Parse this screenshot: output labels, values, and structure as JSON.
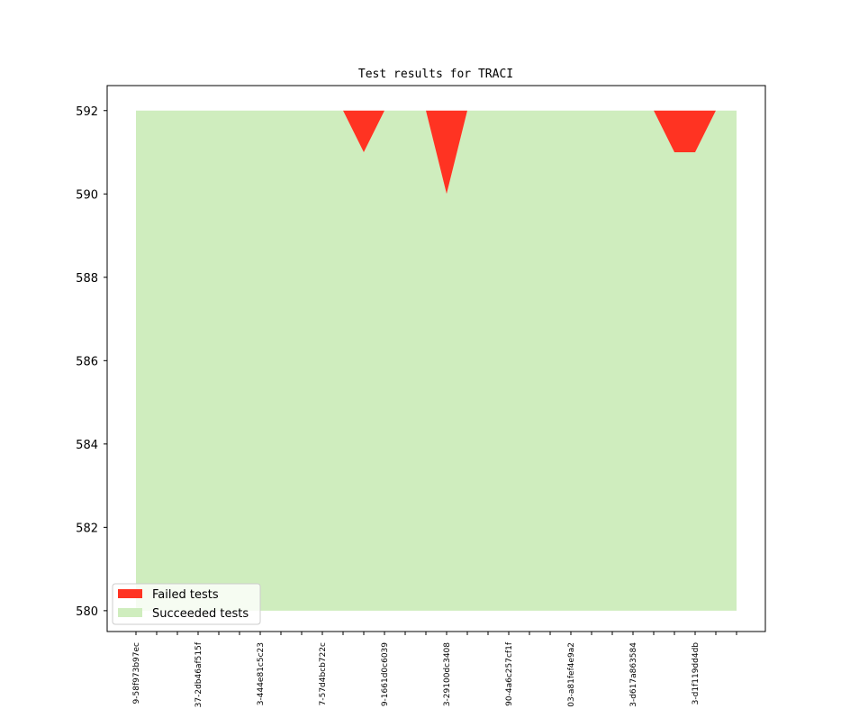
{
  "chart_data": {
    "type": "area",
    "title": "Test results for TRACI",
    "xlabel": "",
    "ylabel": "",
    "ylim": [
      579.5,
      592.6
    ],
    "y_ticks": [
      580,
      582,
      584,
      586,
      588,
      590,
      592
    ],
    "x_tick_count": 30,
    "x_tick_labels": [
      {
        "index": 0,
        "label": "9-58f973b97ec"
      },
      {
        "index": 3,
        "label": "37-2db46af515f"
      },
      {
        "index": 6,
        "label": "3-444e81c5c23"
      },
      {
        "index": 9,
        "label": "7-57d4bcb722c"
      },
      {
        "index": 12,
        "label": "9-1661d0c6039"
      },
      {
        "index": 15,
        "label": "3-29100dc3408"
      },
      {
        "index": 18,
        "label": "90-4a6c257cf1f"
      },
      {
        "index": 21,
        "label": "03-a81fef4e9a2"
      },
      {
        "index": 24,
        "label": "3-d617a863584"
      },
      {
        "index": 27,
        "label": "3-d1f119dd4db"
      }
    ],
    "series": [
      {
        "name": "Failed tests",
        "color": "#ff3322",
        "values": [
          0,
          0,
          0,
          0,
          0,
          0,
          0,
          0,
          0,
          0,
          0,
          0,
          0,
          0,
          0,
          0,
          0,
          0,
          0,
          0,
          0,
          0,
          0,
          0,
          0,
          0,
          0,
          0,
          0,
          0
        ],
        "failed_values": [
          0,
          0,
          0,
          0,
          0,
          0,
          0,
          0,
          0,
          0,
          0,
          1,
          0,
          0,
          0,
          2,
          0,
          0,
          0,
          0,
          0,
          0,
          0,
          0,
          0,
          0,
          1,
          1,
          0,
          0
        ]
      },
      {
        "name": "Succeeded tests",
        "color": "#cfedbe",
        "values": [
          592,
          592,
          592,
          592,
          592,
          592,
          592,
          592,
          592,
          592,
          592,
          591,
          592,
          592,
          592,
          590,
          592,
          592,
          592,
          592,
          592,
          592,
          592,
          592,
          592,
          592,
          591,
          591,
          592,
          592
        ]
      }
    ],
    "total": 592,
    "baseline": 580,
    "legend_position": "lower-left",
    "grid": false
  }
}
